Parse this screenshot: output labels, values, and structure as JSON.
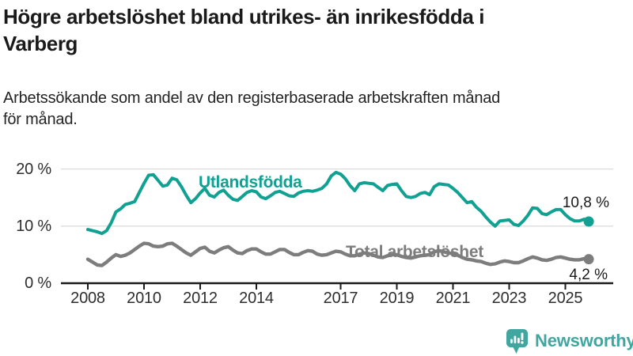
{
  "header": {
    "title_lines": [
      "Högre arbetslöshet bland utrikes- än inrikesfödda i",
      "Varberg"
    ],
    "subtitle_lines": [
      "Arbetssökande som andel av den registerbaserade arbetskraften månad",
      "för månad."
    ]
  },
  "chart_data": {
    "type": "line",
    "title": "Högre arbetslöshet bland utrikes- än inrikesfödda i Varberg",
    "subtitle": "Arbetssökande som andel av den registerbaserade arbetskraften månad för månad.",
    "xlabel": "",
    "ylabel": "",
    "x_unit": "decimal-year (monthly data, stored at 2-month resolution)",
    "x_start": 2008.0,
    "points_per_year": 6,
    "x_end": 2025.83,
    "xticks": [
      "2008",
      "2010",
      "2012",
      "2014",
      "2017",
      "2019",
      "2021",
      "2023",
      "2025"
    ],
    "yticks": [
      {
        "value": 0,
        "label": "0 %"
      },
      {
        "value": 10,
        "label": "10 %"
      },
      {
        "value": 20,
        "label": "20 %"
      }
    ],
    "ylim": [
      0,
      22
    ],
    "grid": "horizontal",
    "legend_position": "inline-labels",
    "colors": {
      "foreign_born": "#10a192",
      "total": "#7d7d7d",
      "gridline": "#dcdcdc",
      "axis": "#1a1a1a"
    },
    "series": [
      {
        "name": "Utlandsfödda",
        "color": "#10a192",
        "end_label": "10,8 %",
        "end_value": 10.8,
        "values": [
          9.4,
          9.2,
          9.0,
          8.7,
          9.2,
          10.6,
          12.5,
          13.0,
          13.8,
          14.0,
          14.3,
          15.9,
          17.5,
          18.9,
          19.0,
          18.0,
          17.0,
          17.2,
          18.4,
          18.1,
          16.9,
          15.4,
          14.1,
          14.8,
          15.8,
          16.6,
          15.4,
          15.1,
          15.9,
          16.3,
          15.4,
          14.7,
          14.5,
          15.2,
          15.9,
          16.2,
          16.0,
          15.1,
          14.8,
          15.3,
          15.9,
          16.1,
          15.7,
          15.3,
          15.2,
          15.8,
          16.1,
          16.2,
          16.1,
          16.3,
          16.6,
          17.4,
          18.8,
          19.4,
          19.1,
          18.3,
          17.1,
          16.2,
          17.4,
          17.6,
          17.5,
          17.4,
          16.8,
          16.2,
          17.1,
          17.3,
          17.4,
          16.2,
          15.2,
          15.0,
          15.2,
          15.7,
          15.9,
          15.5,
          16.9,
          17.4,
          17.3,
          17.2,
          16.6,
          15.9,
          15.0,
          14.1,
          14.3,
          13.3,
          12.6,
          11.6,
          10.7,
          10.0,
          10.9,
          11.0,
          11.1,
          10.3,
          10.1,
          10.9,
          11.9,
          13.2,
          13.1,
          12.2,
          12.0,
          12.5,
          12.9,
          12.9,
          12.0,
          11.3,
          10.9,
          10.9,
          11.2,
          10.8
        ]
      },
      {
        "name": "Total arbetslöshet",
        "color": "#7d7d7d",
        "end_label": "4,2 %",
        "end_value": 4.2,
        "values": [
          4.2,
          3.7,
          3.2,
          3.1,
          3.7,
          4.4,
          5.0,
          4.7,
          4.9,
          5.3,
          5.9,
          6.5,
          7.0,
          6.9,
          6.5,
          6.4,
          6.5,
          6.9,
          7.0,
          6.5,
          5.9,
          5.3,
          4.9,
          5.5,
          6.1,
          6.3,
          5.6,
          5.3,
          5.8,
          6.2,
          6.4,
          5.8,
          5.3,
          5.2,
          5.7,
          6.0,
          6.0,
          5.5,
          5.1,
          5.1,
          5.5,
          5.9,
          5.9,
          5.4,
          5.0,
          5.0,
          5.4,
          5.7,
          5.6,
          5.1,
          4.9,
          5.0,
          5.3,
          5.6,
          5.5,
          5.1,
          4.8,
          4.8,
          5.1,
          5.3,
          5.2,
          4.9,
          4.6,
          4.5,
          4.8,
          5.0,
          5.0,
          4.7,
          4.5,
          4.4,
          4.6,
          4.8,
          4.9,
          5.0,
          5.5,
          5.7,
          5.5,
          5.3,
          5.2,
          4.9,
          4.5,
          4.2,
          4.1,
          3.9,
          3.8,
          3.5,
          3.3,
          3.4,
          3.7,
          3.9,
          3.8,
          3.6,
          3.6,
          3.9,
          4.3,
          4.6,
          4.4,
          4.1,
          4.0,
          4.2,
          4.5,
          4.6,
          4.4,
          4.2,
          4.1,
          4.1,
          4.3,
          4.2
        ]
      }
    ]
  },
  "footer": {
    "brand": "Newsworthy",
    "brand_color": "#41a6a0",
    "logo_icon": "speech-bubble-bar-chart-icon"
  }
}
